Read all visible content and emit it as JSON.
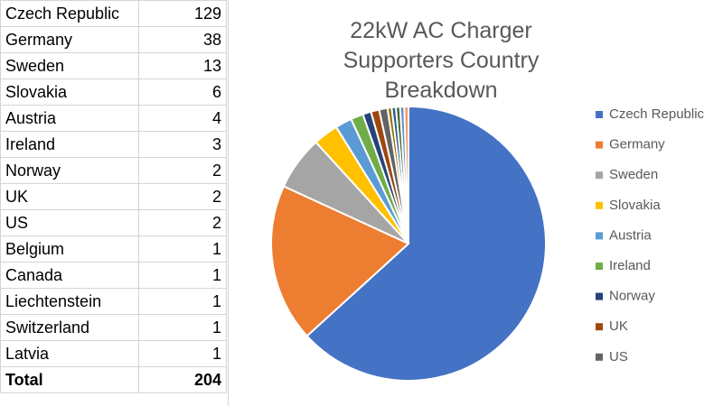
{
  "table": {
    "rows": [
      [
        "Czech Republic",
        129
      ],
      [
        "Germany",
        38
      ],
      [
        "Sweden",
        13
      ],
      [
        "Slovakia",
        6
      ],
      [
        "Austria",
        4
      ],
      [
        "Ireland",
        3
      ],
      [
        "Norway",
        2
      ],
      [
        "UK",
        2
      ],
      [
        "US",
        2
      ],
      [
        "Belgium",
        1
      ],
      [
        "Canada",
        1
      ],
      [
        "Liechtenstein",
        1
      ],
      [
        "Switzerland",
        1
      ],
      [
        "Latvia",
        1
      ]
    ],
    "total": [
      "Total",
      204
    ]
  },
  "chart_data": {
    "type": "pie",
    "title": "22kW AC Charger Supporters Country Breakdown",
    "categories": [
      "Czech Republic",
      "Germany",
      "Sweden",
      "Slovakia",
      "Austria",
      "Ireland",
      "Norway",
      "UK",
      "US",
      null,
      null,
      null,
      null,
      null
    ],
    "values": [
      129,
      38,
      13,
      6,
      4,
      3,
      2,
      2,
      2,
      1,
      1,
      1,
      1,
      1
    ],
    "colors": [
      "#4472c4",
      "#ed7d31",
      "#a5a5a5",
      "#ffc000",
      "#5b9bd5",
      "#70ad47",
      "#264478",
      "#9e480e",
      "#636363",
      "#997300",
      "#255e91",
      "#43682b",
      "#698ed0",
      "#f1975a"
    ],
    "legend": "right"
  }
}
